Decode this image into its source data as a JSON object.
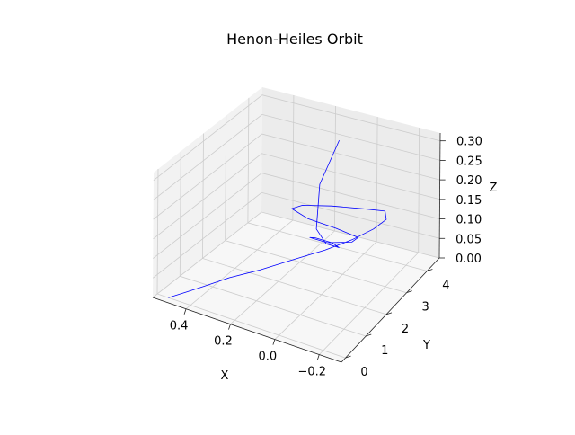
{
  "chart_data": {
    "type": "line",
    "projection": "3d",
    "title": "Henon-Heiles Orbit",
    "xlabel": "X",
    "ylabel": "Y",
    "zlabel": "Z",
    "xlim": [
      -0.3,
      0.55
    ],
    "ylim": [
      -0.2,
      4.6
    ],
    "zlim": [
      0.0,
      0.32
    ],
    "xticks": [
      -0.2,
      0.0,
      0.2,
      0.4
    ],
    "xtick_labels": [
      "−0.2",
      "0.0",
      "0.2",
      "0.4"
    ],
    "yticks": [
      0,
      1,
      2,
      3,
      4
    ],
    "ytick_labels": [
      "0",
      "1",
      "2",
      "3",
      "4"
    ],
    "zticks": [
      0.0,
      0.05,
      0.1,
      0.15,
      0.2,
      0.25,
      0.3
    ],
    "ztick_labels": [
      "0.00",
      "0.05",
      "0.10",
      "0.15",
      "0.20",
      "0.25",
      "0.30"
    ],
    "grid": true,
    "line_color": "#0000ff",
    "pane_color": "#f2f2f2",
    "series": [
      {
        "x": [
          0.5,
          0.45,
          0.4,
          0.32,
          0.22,
          0.1,
          -0.02,
          -0.12,
          -0.2,
          -0.24,
          -0.22,
          -0.12,
          0.02,
          0.14,
          0.18,
          0.1,
          -0.02,
          -0.12,
          -0.1,
          0.0,
          0.08,
          0.06,
          -0.02,
          -0.06,
          0.0,
          0.06,
          0.1,
          0.08
        ],
        "y": [
          0.0,
          0.3,
          0.6,
          0.95,
          1.3,
          1.65,
          1.95,
          2.2,
          2.4,
          2.6,
          2.75,
          2.75,
          2.65,
          2.5,
          2.4,
          2.35,
          2.45,
          2.5,
          2.4,
          2.25,
          2.25,
          2.3,
          2.3,
          2.2,
          2.2,
          2.35,
          2.9,
          3.6
        ],
        "z": [
          0.0,
          0.01,
          0.02,
          0.04,
          0.06,
          0.09,
          0.12,
          0.15,
          0.18,
          0.2,
          0.21,
          0.2,
          0.19,
          0.18,
          0.17,
          0.16,
          0.15,
          0.14,
          0.13,
          0.12,
          0.12,
          0.12,
          0.12,
          0.12,
          0.12,
          0.14,
          0.22,
          0.3
        ]
      }
    ]
  }
}
